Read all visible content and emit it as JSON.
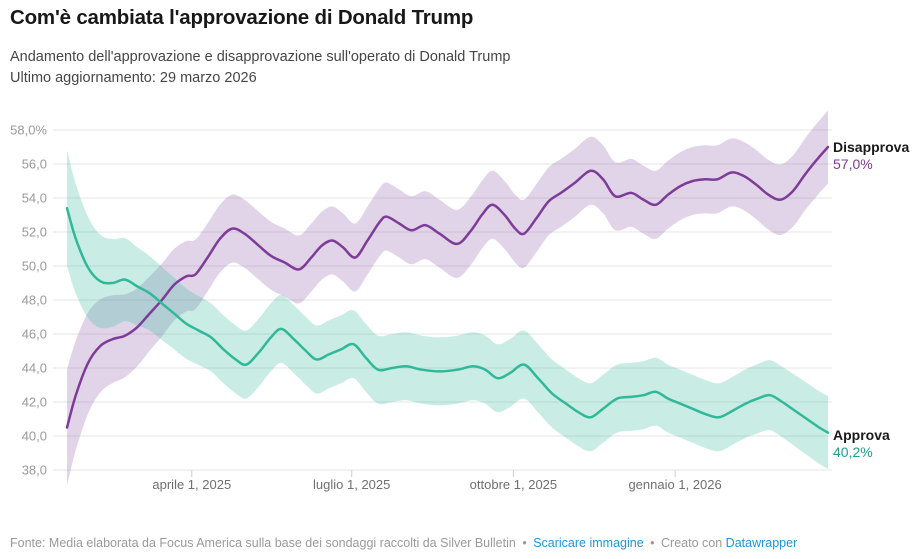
{
  "header": {
    "title": "Com'è cambiata l'approvazione di Donald Trump",
    "subtitle_line1": "Andamento dell'approvazione e disapprovazione sull'operato di Donald Trump",
    "subtitle_line2": "Ultimo aggiornamento: 29 marzo 2026"
  },
  "chart_data": {
    "type": "line",
    "title": "Com'è cambiata l'approvazione di Donald Trump",
    "x_domain": [
      "2025-01-20",
      "2026-03-29"
    ],
    "y_domain": [
      38,
      58
    ],
    "grid": "horizontal-only",
    "x_ticks": [
      {
        "date": "2025-04-01",
        "label": "aprile 1, 2025"
      },
      {
        "date": "2025-07-01",
        "label": "luglio 1, 2025"
      },
      {
        "date": "2025-10-01",
        "label": "ottobre 1, 2025"
      },
      {
        "date": "2026-01-01",
        "label": "gennaio 1, 2026"
      }
    ],
    "y_ticks": [
      {
        "value": 58,
        "label": "58,0%"
      },
      {
        "value": 56,
        "label": "56,0"
      },
      {
        "value": 54,
        "label": "54,0"
      },
      {
        "value": 52,
        "label": "52,0"
      },
      {
        "value": 50,
        "label": "50,0"
      },
      {
        "value": 48,
        "label": "48,0"
      },
      {
        "value": 46,
        "label": "46,0"
      },
      {
        "value": 44,
        "label": "44,0"
      },
      {
        "value": 42,
        "label": "42,0"
      },
      {
        "value": 40,
        "label": "40,0"
      },
      {
        "value": 38,
        "label": "38,0"
      }
    ],
    "band_profile": [
      [
        0,
        3.4
      ],
      [
        20,
        2.7
      ],
      [
        45,
        2.2
      ],
      [
        80,
        2.0
      ],
      [
        380,
        2.0
      ],
      [
        433,
        2.15
      ]
    ],
    "band_opacity": {
      "Disapprova": 0.22,
      "Approva": 0.26
    },
    "series": [
      {
        "name": "Disapprova",
        "color": "#7d3c98",
        "end_label": "Disapprova",
        "end_value": 57.0,
        "end_value_label": "57,0%",
        "points": [
          [
            "2025-01-20",
            40.5
          ],
          [
            "2025-01-25",
            42.4
          ],
          [
            "2025-02-01",
            44.3
          ],
          [
            "2025-02-08",
            45.3
          ],
          [
            "2025-02-15",
            45.7
          ],
          [
            "2025-02-22",
            45.9
          ],
          [
            "2025-03-01",
            46.4
          ],
          [
            "2025-03-08",
            47.2
          ],
          [
            "2025-03-15",
            48.0
          ],
          [
            "2025-03-22",
            48.9
          ],
          [
            "2025-03-29",
            49.4
          ],
          [
            "2025-04-03",
            49.5
          ],
          [
            "2025-04-10",
            50.5
          ],
          [
            "2025-04-17",
            51.6
          ],
          [
            "2025-04-24",
            52.2
          ],
          [
            "2025-05-01",
            51.9
          ],
          [
            "2025-05-08",
            51.3
          ],
          [
            "2025-05-16",
            50.6
          ],
          [
            "2025-05-24",
            50.2
          ],
          [
            "2025-06-01",
            49.8
          ],
          [
            "2025-06-08",
            50.5
          ],
          [
            "2025-06-14",
            51.2
          ],
          [
            "2025-06-20",
            51.5
          ],
          [
            "2025-06-26",
            51.1
          ],
          [
            "2025-07-03",
            50.5
          ],
          [
            "2025-07-10",
            51.5
          ],
          [
            "2025-07-17",
            52.6
          ],
          [
            "2025-07-21",
            52.9
          ],
          [
            "2025-07-28",
            52.5
          ],
          [
            "2025-08-04",
            52.1
          ],
          [
            "2025-08-12",
            52.4
          ],
          [
            "2025-08-20",
            51.9
          ],
          [
            "2025-08-30",
            51.3
          ],
          [
            "2025-09-07",
            52.1
          ],
          [
            "2025-09-13",
            53.0
          ],
          [
            "2025-09-19",
            53.6
          ],
          [
            "2025-09-26",
            53.0
          ],
          [
            "2025-10-02",
            52.2
          ],
          [
            "2025-10-07",
            51.9
          ],
          [
            "2025-10-14",
            52.8
          ],
          [
            "2025-10-21",
            53.8
          ],
          [
            "2025-10-28",
            54.3
          ],
          [
            "2025-11-05",
            54.9
          ],
          [
            "2025-11-14",
            55.6
          ],
          [
            "2025-11-21",
            55.1
          ],
          [
            "2025-11-28",
            54.1
          ],
          [
            "2025-12-07",
            54.3
          ],
          [
            "2025-12-14",
            53.9
          ],
          [
            "2025-12-21",
            53.6
          ],
          [
            "2025-12-28",
            54.2
          ],
          [
            "2026-01-04",
            54.7
          ],
          [
            "2026-01-11",
            55.0
          ],
          [
            "2026-01-18",
            55.1
          ],
          [
            "2026-01-25",
            55.1
          ],
          [
            "2026-02-02",
            55.5
          ],
          [
            "2026-02-09",
            55.3
          ],
          [
            "2026-02-16",
            54.8
          ],
          [
            "2026-02-23",
            54.2
          ],
          [
            "2026-03-02",
            53.9
          ],
          [
            "2026-03-09",
            54.4
          ],
          [
            "2026-03-16",
            55.4
          ],
          [
            "2026-03-23",
            56.3
          ],
          [
            "2026-03-29",
            57.0
          ]
        ]
      },
      {
        "name": "Approva",
        "color": "#30b899",
        "end_label": "Approva",
        "end_value": 40.2,
        "end_value_label": "40,2%",
        "points": [
          [
            "2025-01-20",
            53.4
          ],
          [
            "2025-01-25",
            51.6
          ],
          [
            "2025-02-01",
            49.9
          ],
          [
            "2025-02-08",
            49.1
          ],
          [
            "2025-02-15",
            49.0
          ],
          [
            "2025-02-22",
            49.2
          ],
          [
            "2025-03-01",
            48.8
          ],
          [
            "2025-03-08",
            48.4
          ],
          [
            "2025-03-15",
            47.8
          ],
          [
            "2025-03-22",
            47.2
          ],
          [
            "2025-03-29",
            46.6
          ],
          [
            "2025-04-05",
            46.2
          ],
          [
            "2025-04-12",
            45.8
          ],
          [
            "2025-04-19",
            45.1
          ],
          [
            "2025-04-26",
            44.5
          ],
          [
            "2025-05-02",
            44.2
          ],
          [
            "2025-05-09",
            44.9
          ],
          [
            "2025-05-16",
            45.8
          ],
          [
            "2025-05-22",
            46.3
          ],
          [
            "2025-05-29",
            45.7
          ],
          [
            "2025-06-05",
            45.0
          ],
          [
            "2025-06-11",
            44.5
          ],
          [
            "2025-06-18",
            44.8
          ],
          [
            "2025-06-25",
            45.1
          ],
          [
            "2025-07-02",
            45.4
          ],
          [
            "2025-07-09",
            44.6
          ],
          [
            "2025-07-16",
            43.9
          ],
          [
            "2025-07-24",
            44.0
          ],
          [
            "2025-08-01",
            44.1
          ],
          [
            "2025-08-10",
            43.9
          ],
          [
            "2025-08-20",
            43.8
          ],
          [
            "2025-08-30",
            43.9
          ],
          [
            "2025-09-08",
            44.1
          ],
          [
            "2025-09-15",
            43.9
          ],
          [
            "2025-09-22",
            43.4
          ],
          [
            "2025-09-29",
            43.7
          ],
          [
            "2025-10-07",
            44.2
          ],
          [
            "2025-10-15",
            43.4
          ],
          [
            "2025-10-23",
            42.5
          ],
          [
            "2025-10-31",
            41.9
          ],
          [
            "2025-11-07",
            41.4
          ],
          [
            "2025-11-14",
            41.1
          ],
          [
            "2025-11-21",
            41.6
          ],
          [
            "2025-11-29",
            42.2
          ],
          [
            "2025-12-07",
            42.3
          ],
          [
            "2025-12-14",
            42.4
          ],
          [
            "2025-12-21",
            42.6
          ],
          [
            "2025-12-28",
            42.2
          ],
          [
            "2026-01-04",
            41.9
          ],
          [
            "2026-01-11",
            41.6
          ],
          [
            "2026-01-18",
            41.3
          ],
          [
            "2026-01-26",
            41.1
          ],
          [
            "2026-02-03",
            41.5
          ],
          [
            "2026-02-10",
            41.9
          ],
          [
            "2026-02-17",
            42.2
          ],
          [
            "2026-02-24",
            42.4
          ],
          [
            "2026-03-03",
            42.0
          ],
          [
            "2026-03-10",
            41.5
          ],
          [
            "2026-03-17",
            41.0
          ],
          [
            "2026-03-24",
            40.5
          ],
          [
            "2026-03-29",
            40.2
          ]
        ]
      }
    ]
  },
  "colors": {
    "grid": "#e4e4e4",
    "tick": "#cfcfcf",
    "link_blue": "#2196d6",
    "footer_gray": "#9a9a9a"
  },
  "footer": {
    "source_text": "Fonte: Media elaborata da Focus America sulla base dei sondaggi raccolti da Silver Bulletin",
    "separator": "•",
    "download_link": "Scaricare immagine",
    "created_with": "Creato con",
    "tool_link": "Datawrapper"
  }
}
